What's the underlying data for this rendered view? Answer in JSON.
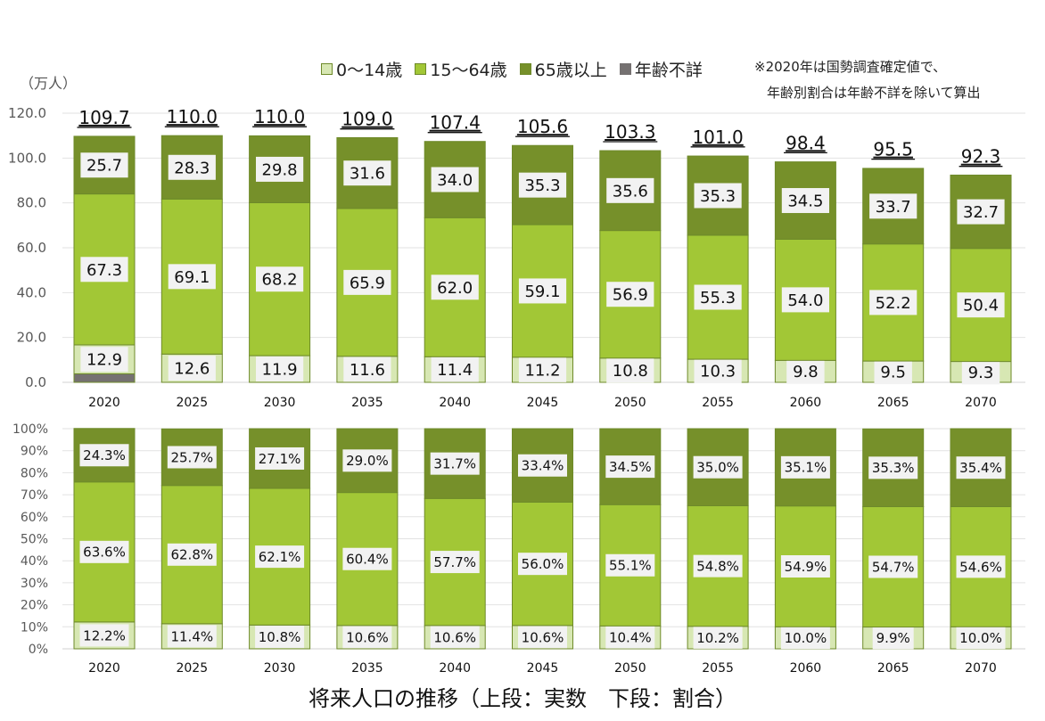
{
  "title": "将来人口の推移（上段：実数　下段：割合）",
  "legend": [
    {
      "label": "0〜14歳",
      "color": "#d7e7b3"
    },
    {
      "label": "15〜64歳",
      "color": "#a2c736"
    },
    {
      "label": "65歳以上",
      "color": "#76902a"
    },
    {
      "label": "年齢不詳",
      "color": "#757171"
    }
  ],
  "note": {
    "line1": "※2020年は国勢調査確定値で、",
    "line2": "年齢別割合は年齢不詳を除いて算出"
  },
  "chart_data": [
    {
      "type": "bar",
      "stacked": true,
      "title": "上段：実数",
      "ylabel": "（万人）",
      "ylim": [
        0,
        120
      ],
      "yticks": [
        "0.0",
        "20.0",
        "40.0",
        "60.0",
        "80.0",
        "100.0",
        "120.0"
      ],
      "ytick_values": [
        0,
        20,
        40,
        60,
        80,
        100,
        120
      ],
      "grid": true,
      "legend_position": "top-right",
      "categories": [
        "2020",
        "2025",
        "2030",
        "2035",
        "2040",
        "2045",
        "2050",
        "2055",
        "2060",
        "2065",
        "2070"
      ],
      "series": [
        {
          "name": "年齢不詳",
          "values": [
            3.8,
            0,
            0,
            0,
            0,
            0,
            0,
            0,
            0,
            0,
            0
          ],
          "labels": null
        },
        {
          "name": "0〜14歳",
          "values": [
            12.9,
            12.6,
            11.9,
            11.6,
            11.4,
            11.2,
            10.8,
            10.3,
            9.8,
            9.5,
            9.3
          ],
          "labels": [
            "12.9",
            "12.6",
            "11.9",
            "11.6",
            "11.4",
            "11.2",
            "10.8",
            "10.3",
            "9.8",
            "9.5",
            "9.3"
          ]
        },
        {
          "name": "15〜64歳",
          "values": [
            67.3,
            69.1,
            68.2,
            65.9,
            62.0,
            59.1,
            56.9,
            55.3,
            54.0,
            52.2,
            50.4
          ],
          "labels": [
            "67.3",
            "69.1",
            "68.2",
            "65.9",
            "62.0",
            "59.1",
            "56.9",
            "55.3",
            "54.0",
            "52.2",
            "50.4"
          ]
        },
        {
          "name": "65歳以上",
          "values": [
            25.7,
            28.3,
            29.8,
            31.6,
            34.0,
            35.3,
            35.6,
            35.3,
            34.5,
            33.7,
            32.7
          ],
          "labels": [
            "25.7",
            "28.3",
            "29.8",
            "31.6",
            "34.0",
            "35.3",
            "35.6",
            "35.3",
            "34.5",
            "33.7",
            "32.7"
          ]
        }
      ],
      "totals": [
        109.7,
        110.0,
        110.0,
        109.0,
        107.4,
        105.6,
        103.3,
        101.0,
        98.4,
        95.5,
        92.3
      ],
      "total_labels": [
        "109.7",
        "110.0",
        "110.0",
        "109.0",
        "107.4",
        "105.6",
        "103.3",
        "101.0",
        "98.4",
        "95.5",
        "92.3"
      ]
    },
    {
      "type": "bar",
      "stacked": true,
      "percent": true,
      "title": "下段：割合",
      "ylim": [
        0,
        100
      ],
      "yticks": [
        "0%",
        "10%",
        "20%",
        "30%",
        "40%",
        "50%",
        "60%",
        "70%",
        "80%",
        "90%",
        "100%"
      ],
      "ytick_values": [
        0,
        10,
        20,
        30,
        40,
        50,
        60,
        70,
        80,
        90,
        100
      ],
      "grid": true,
      "categories": [
        "2020",
        "2025",
        "2030",
        "2035",
        "2040",
        "2045",
        "2050",
        "2055",
        "2060",
        "2065",
        "2070"
      ],
      "series": [
        {
          "name": "0〜14歳",
          "values": [
            12.2,
            11.4,
            10.8,
            10.6,
            10.6,
            10.6,
            10.4,
            10.2,
            10.0,
            9.9,
            10.0
          ],
          "labels": [
            "12.2%",
            "11.4%",
            "10.8%",
            "10.6%",
            "10.6%",
            "10.6%",
            "10.4%",
            "10.2%",
            "10.0%",
            "9.9%",
            "10.0%"
          ]
        },
        {
          "name": "15〜64歳",
          "values": [
            63.6,
            62.8,
            62.1,
            60.4,
            57.7,
            56.0,
            55.1,
            54.8,
            54.9,
            54.7,
            54.6
          ],
          "labels": [
            "63.6%",
            "62.8%",
            "62.1%",
            "60.4%",
            "57.7%",
            "56.0%",
            "55.1%",
            "54.8%",
            "54.9%",
            "54.7%",
            "54.6%"
          ]
        },
        {
          "name": "65歳以上",
          "values": [
            24.3,
            25.7,
            27.1,
            29.0,
            31.7,
            33.4,
            34.5,
            35.0,
            35.1,
            35.3,
            35.4
          ],
          "labels": [
            "24.3%",
            "25.7%",
            "27.1%",
            "29.0%",
            "31.7%",
            "33.4%",
            "34.5%",
            "35.0%",
            "35.1%",
            "35.3%",
            "35.4%"
          ]
        }
      ]
    }
  ]
}
